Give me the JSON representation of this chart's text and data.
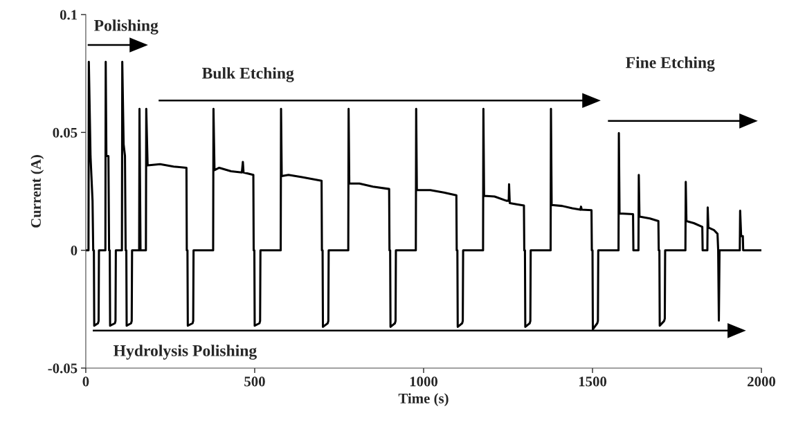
{
  "chart_data": {
    "type": "line",
    "xlabel": "Time (s)",
    "ylabel": "Current (A)",
    "xlim": [
      0,
      2000
    ],
    "xticks": [
      0,
      500,
      1000,
      1500,
      2000
    ],
    "ylim": [
      -0.05,
      0.1
    ],
    "yticks": [
      {
        "value": -0.05,
        "label": "-0.05"
      },
      0,
      0.05,
      0.1
    ],
    "grid": false,
    "legend": false,
    "marker": "none",
    "line_style": "solid",
    "annotations": [
      "Polishing",
      "Bulk Etching",
      "Fine Etching",
      "Hydrolysis Polishing"
    ],
    "series": [
      {
        "color": "#000000",
        "x": [
          0,
          8,
          9,
          14,
          20,
          22,
          24,
          25,
          36,
          38,
          39,
          58,
          59,
          61,
          67,
          69,
          71,
          72,
          86,
          88,
          89,
          107,
          108,
          112,
          116,
          118,
          120,
          121,
          134,
          136,
          137,
          158,
          159,
          162,
          178,
          179,
          183,
          220,
          260,
          298,
          299,
          301,
          302,
          316,
          318,
          319,
          377,
          378,
          381,
          395,
          430,
          462,
          465,
          467,
          496,
          497,
          499,
          500,
          514,
          516,
          517,
          577,
          578,
          580,
          600,
          640,
          698,
          699,
          701,
          702,
          716,
          718,
          719,
          777,
          778,
          780,
          810,
          850,
          898,
          899,
          901,
          902,
          915,
          917,
          918,
          977,
          978,
          980,
          1020,
          1060,
          1097,
          1098,
          1100,
          1101,
          1114,
          1116,
          1117,
          1176,
          1177,
          1179,
          1210,
          1245,
          1252,
          1253,
          1255,
          1275,
          1297,
          1298,
          1300,
          1301,
          1314,
          1316,
          1317,
          1376,
          1377,
          1379,
          1410,
          1440,
          1464,
          1466,
          1468,
          1497,
          1498,
          1500,
          1501,
          1514,
          1516,
          1517,
          1577,
          1578,
          1580,
          1610,
          1620,
          1621,
          1636,
          1637,
          1639,
          1670,
          1695,
          1696,
          1698,
          1699,
          1712,
          1714,
          1715,
          1775,
          1776,
          1778,
          1800,
          1825,
          1826,
          1840,
          1841,
          1843,
          1860,
          1870,
          1872,
          1874,
          1876,
          1936,
          1937,
          1940,
          1945,
          1946,
          2000
        ],
        "values": [
          0,
          0,
          0.08,
          0.04,
          0.021,
          0,
          0,
          -0.032,
          -0.031,
          -0.03,
          0,
          0,
          0.08,
          0.04,
          0.04,
          0,
          0,
          -0.032,
          -0.031,
          -0.03,
          0,
          0,
          0.08,
          0.045,
          0.04,
          0,
          0,
          -0.032,
          -0.031,
          -0.03,
          0,
          0,
          0.06,
          0,
          0,
          0.06,
          0.036,
          0.0365,
          0.0355,
          0.035,
          0,
          0,
          -0.032,
          -0.031,
          -0.03,
          0,
          0,
          0.06,
          0.034,
          0.035,
          0.0335,
          0.033,
          0.0375,
          0.033,
          0.032,
          0,
          0,
          -0.032,
          -0.031,
          -0.03,
          0,
          0,
          0.06,
          0.0315,
          0.032,
          0.031,
          0.0295,
          0,
          0,
          -0.0325,
          -0.031,
          -0.03,
          0,
          0,
          0.06,
          0.0283,
          0.0283,
          0.027,
          0.026,
          0,
          0,
          -0.0325,
          -0.031,
          -0.03,
          0,
          0,
          0.06,
          0.0256,
          0.0255,
          0.0245,
          0.0233,
          0,
          0,
          -0.0325,
          -0.031,
          -0.03,
          0,
          0,
          0.06,
          0.0231,
          0.0228,
          0.021,
          0.021,
          0.028,
          0.02,
          0.0195,
          0.019,
          0,
          0,
          -0.0325,
          -0.031,
          -0.03,
          0,
          0,
          0.06,
          0.0192,
          0.0188,
          0.0178,
          0.0172,
          0.0185,
          0.0172,
          0.017,
          0,
          0,
          -0.0335,
          -0.031,
          -0.03,
          0,
          0,
          0.0497,
          0.0156,
          0.0154,
          0.0153,
          0,
          0,
          0.032,
          0.0143,
          0.0135,
          0.0124,
          0,
          0,
          -0.032,
          -0.03,
          -0.029,
          0,
          0,
          0.029,
          0.0124,
          0.0115,
          0.0099,
          0,
          0,
          0.0182,
          0.0096,
          0.0085,
          0.007,
          0,
          -0.0298,
          0,
          0,
          0.0168,
          0.006,
          0.006,
          0,
          0
        ]
      }
    ]
  }
}
